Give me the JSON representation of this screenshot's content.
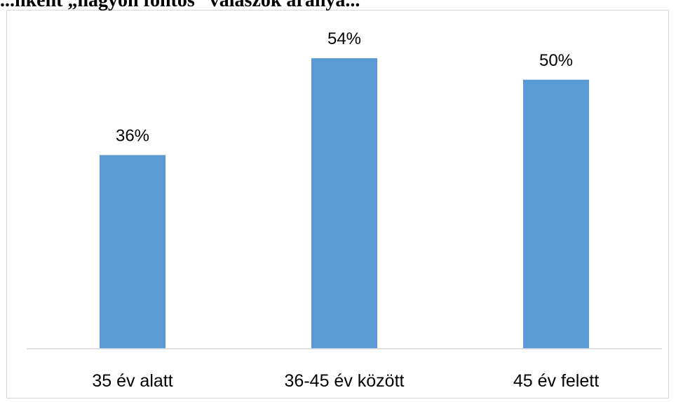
{
  "caption_fragment": "...nként „nagyon fontos” válaszok aránya...",
  "chart_data": {
    "type": "bar",
    "title": "",
    "xlabel": "",
    "ylabel": "",
    "categories": [
      "35 év alatt",
      "36-45 év között",
      "45 év felett"
    ],
    "values": [
      36,
      54,
      50
    ],
    "value_labels": [
      "36%",
      "54%",
      "50%"
    ],
    "ylim": [
      0,
      60
    ],
    "grid": false,
    "legend": "none",
    "bar_color": "#5b9bd5",
    "axis_color": "#d9d9d9",
    "border_color": "#d9d9d9"
  }
}
